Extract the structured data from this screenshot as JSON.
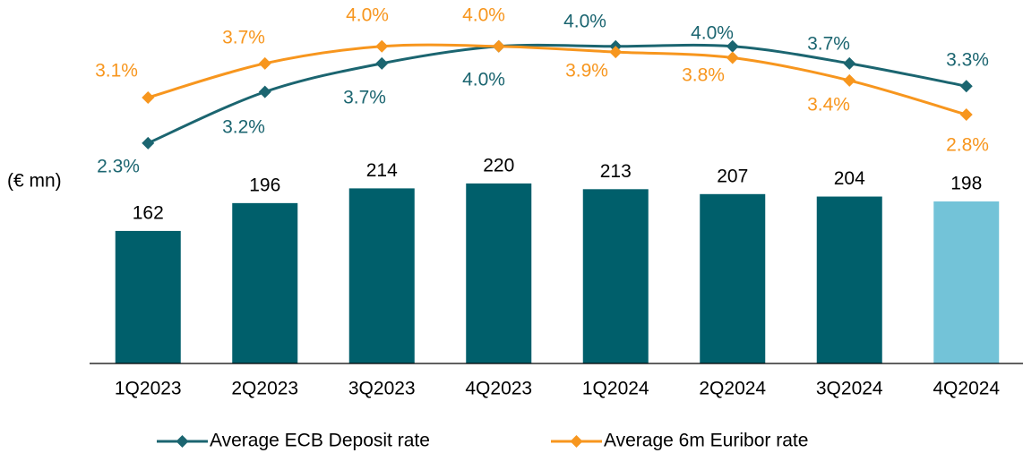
{
  "chart_data": {
    "type": "bar",
    "ylabel": "(€ mn)",
    "categories": [
      "1Q2023",
      "2Q2023",
      "3Q2023",
      "4Q2023",
      "1Q2024",
      "2Q2024",
      "3Q2024",
      "4Q2024"
    ],
    "values": [
      162,
      196,
      214,
      220,
      213,
      207,
      204,
      198
    ],
    "colors": [
      "#005f6b",
      "#005f6b",
      "#005f6b",
      "#005f6b",
      "#005f6b",
      "#005f6b",
      "#005f6b",
      "#73c3d8"
    ],
    "ylim": [
      0,
      250
    ],
    "y2lim": [
      0,
      4.5
    ],
    "series": [
      {
        "name": "Average ECB Deposit rate",
        "type": "line",
        "axis": "y2",
        "color": "#1b6570",
        "values": [
          2.3,
          3.2,
          3.7,
          4.0,
          4.0,
          4.0,
          3.7,
          3.3
        ],
        "value_labels": [
          "2.3%",
          "3.2%",
          "3.7%",
          "4.0%",
          "4.0%",
          "4.0%",
          "3.7%",
          "3.3%"
        ]
      },
      {
        "name": "Average 6m Euribor rate",
        "type": "line",
        "axis": "y2",
        "color": "#f7961e",
        "values": [
          3.1,
          3.7,
          4.0,
          4.0,
          3.9,
          3.8,
          3.4,
          2.8
        ],
        "value_labels": [
          "3.1%",
          "3.7%",
          "4.0%",
          "4.0%",
          "3.9%",
          "3.8%",
          "3.4%",
          "2.8%"
        ]
      }
    ]
  }
}
